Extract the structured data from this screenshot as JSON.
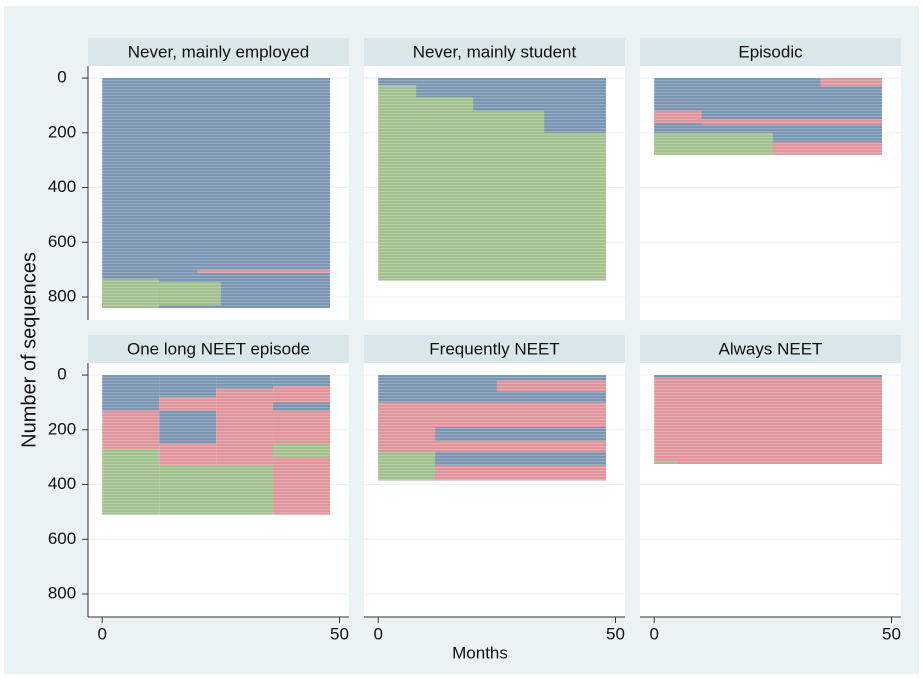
{
  "chart_data": {
    "type": "sequence",
    "ylabel": "Number of sequences",
    "xlabel": "Months",
    "xlim": [
      -3,
      52
    ],
    "xticks": [
      0,
      50
    ],
    "ylim": [
      -44,
      884
    ],
    "yticks": [
      0,
      200,
      400,
      600,
      800
    ],
    "panels": [
      {
        "title": "Never, mainly employed",
        "blocks": [
          {
            "color": "#7b96b3",
            "x": [
              0,
              48
            ],
            "y": [
              0,
              840
            ]
          },
          {
            "color": "#a3c08f",
            "x": [
              0,
              12
            ],
            "y": [
              735,
              840
            ]
          },
          {
            "color": "#a3c08f",
            "x": [
              12,
              25
            ],
            "y": [
              745,
              830
            ]
          },
          {
            "color": "#e0959b",
            "x": [
              20,
              48
            ],
            "y": [
              700,
              712
            ]
          }
        ]
      },
      {
        "title": "Never, mainly student",
        "blocks": [
          {
            "color": "#a3c08f",
            "x": [
              0,
              48
            ],
            "y": [
              0,
              740
            ]
          },
          {
            "color": "#7b96b3",
            "x": [
              0,
              48
            ],
            "y": [
              0,
              25
            ]
          },
          {
            "color": "#7b96b3",
            "x": [
              8,
              48
            ],
            "y": [
              25,
              70
            ]
          },
          {
            "color": "#7b96b3",
            "x": [
              20,
              48
            ],
            "y": [
              70,
              120
            ]
          },
          {
            "color": "#7b96b3",
            "x": [
              35,
              48
            ],
            "y": [
              120,
              200
            ]
          }
        ]
      },
      {
        "title": "Episodic",
        "blocks": [
          {
            "color": "#7b96b3",
            "x": [
              0,
              48
            ],
            "y": [
              0,
              280
            ]
          },
          {
            "color": "#e0959b",
            "x": [
              0,
              10
            ],
            "y": [
              120,
              165
            ]
          },
          {
            "color": "#e0959b",
            "x": [
              35,
              48
            ],
            "y": [
              0,
              30
            ]
          },
          {
            "color": "#e0959b",
            "x": [
              10,
              48
            ],
            "y": [
              150,
              170
            ]
          },
          {
            "color": "#a3c08f",
            "x": [
              0,
              25
            ],
            "y": [
              200,
              280
            ]
          },
          {
            "color": "#e0959b",
            "x": [
              25,
              48
            ],
            "y": [
              235,
              280
            ]
          }
        ]
      },
      {
        "title": "One long NEET episode",
        "blocks": [
          {
            "color": "#7b96b3",
            "x": [
              0,
              12
            ],
            "y": [
              0,
              130
            ]
          },
          {
            "color": "#e0959b",
            "x": [
              0,
              12
            ],
            "y": [
              130,
              270
            ]
          },
          {
            "color": "#a3c08f",
            "x": [
              0,
              12
            ],
            "y": [
              270,
              510
            ]
          },
          {
            "color": "#7b96b3",
            "x": [
              12,
              24
            ],
            "y": [
              0,
              80
            ]
          },
          {
            "color": "#e0959b",
            "x": [
              12,
              24
            ],
            "y": [
              80,
              130
            ]
          },
          {
            "color": "#7b96b3",
            "x": [
              12,
              24
            ],
            "y": [
              130,
              250
            ]
          },
          {
            "color": "#e0959b",
            "x": [
              12,
              24
            ],
            "y": [
              250,
              330
            ]
          },
          {
            "color": "#a3c08f",
            "x": [
              12,
              36
            ],
            "y": [
              330,
              510
            ]
          },
          {
            "color": "#7b96b3",
            "x": [
              24,
              36
            ],
            "y": [
              0,
              50
            ]
          },
          {
            "color": "#e0959b",
            "x": [
              24,
              36
            ],
            "y": [
              50,
              330
            ]
          },
          {
            "color": "#7b96b3",
            "x": [
              36,
              48
            ],
            "y": [
              0,
              40
            ]
          },
          {
            "color": "#e0959b",
            "x": [
              36,
              48
            ],
            "y": [
              40,
              510
            ]
          },
          {
            "color": "#a3c08f",
            "x": [
              36,
              48
            ],
            "y": [
              250,
              300
            ]
          },
          {
            "color": "#7b96b3",
            "x": [
              36,
              48
            ],
            "y": [
              100,
              130
            ]
          }
        ]
      },
      {
        "title": "Frequently NEET",
        "blocks": [
          {
            "color": "#7b96b3",
            "x": [
              0,
              48
            ],
            "y": [
              0,
              385
            ]
          },
          {
            "color": "#e0959b",
            "x": [
              0,
              48
            ],
            "y": [
              100,
              280
            ]
          },
          {
            "color": "#7b96b3",
            "x": [
              12,
              48
            ],
            "y": [
              190,
              240
            ]
          },
          {
            "color": "#a3c08f",
            "x": [
              0,
              12
            ],
            "y": [
              280,
              385
            ]
          },
          {
            "color": "#e0959b",
            "x": [
              12,
              48
            ],
            "y": [
              330,
              385
            ]
          },
          {
            "color": "#e0959b",
            "x": [
              25,
              48
            ],
            "y": [
              20,
              60
            ]
          }
        ]
      },
      {
        "title": "Always NEET",
        "blocks": [
          {
            "color": "#e0959b",
            "x": [
              0,
              48
            ],
            "y": [
              0,
              325
            ]
          },
          {
            "color": "#7b96b3",
            "x": [
              0,
              48
            ],
            "y": [
              0,
              10
            ]
          },
          {
            "color": "#a3c08f",
            "x": [
              0,
              5
            ],
            "y": [
              315,
              325
            ]
          }
        ]
      }
    ]
  }
}
